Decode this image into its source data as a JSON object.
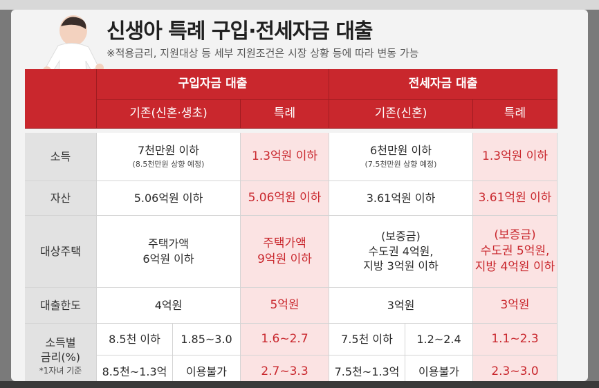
{
  "title": "신생아 특례 구입·전세자금 대출",
  "note": "※적용금리, 지원대상 등 세부 지원조건은 시장 상황 등에 따라 변동 가능",
  "colors": {
    "accent": "#c9272d",
    "pink": "#fbe3e3",
    "label_bg": "#e2e2e2"
  },
  "header": {
    "purchase": "구입자금 대출",
    "jeonse": "전세자금 대출",
    "purchase_basic": "기존(신혼·생초)",
    "purchase_special": "특례",
    "jeonse_basic": "기존(신혼)",
    "jeonse_special": "특례"
  },
  "rows": {
    "income": {
      "label": "소득",
      "purchase_basic": "7천만원 이하",
      "purchase_basic_note": "(8.5천만원 상향 예정)",
      "purchase_special": "1.3억원 이하",
      "jeonse_basic": "6천만원 이하",
      "jeonse_basic_note": "(7.5천만원 상향 예정)",
      "jeonse_special": "1.3억원 이하"
    },
    "assets": {
      "label": "자산",
      "purchase_basic": "5.06억원 이하",
      "purchase_special": "5.06억원 이하",
      "jeonse_basic": "3.61억원 이하",
      "jeonse_special": "3.61억원 이하"
    },
    "housing": {
      "label": "대상주택",
      "purchase_basic_1": "주택가액",
      "purchase_basic_2": "6억원 이하",
      "purchase_special_1": "주택가액",
      "purchase_special_2": "9억원 이하",
      "jeonse_basic_1": "(보증금)",
      "jeonse_basic_2": "수도권 4억원,",
      "jeonse_basic_3": "지방 3억원 이하",
      "jeonse_special_1": "(보증금)",
      "jeonse_special_2": "수도권 5억원,",
      "jeonse_special_3": "지방 4억원 이하"
    },
    "limit": {
      "label": "대출한도",
      "purchase_basic": "4억원",
      "purchase_special": "5억원",
      "jeonse_basic": "3억원",
      "jeonse_special": "3억원"
    },
    "rate": {
      "label_1": "소득별",
      "label_2": "금리(%)",
      "label_note": "*1자녀 기준",
      "r1": {
        "p_income": "8.5천 이하",
        "p_rate": "1.85~3.0",
        "p_special": "1.6~2.7",
        "j_income": "7.5천 이하",
        "j_rate": "1.2~2.4",
        "j_special": "1.1~2.3"
      },
      "r2": {
        "p_income": "8.5천~1.3억",
        "p_rate": "이용불가",
        "p_special": "2.7~3.3",
        "j_income": "7.5천~1.3억",
        "j_rate": "이용불가",
        "j_special": "2.3~3.0"
      }
    }
  }
}
